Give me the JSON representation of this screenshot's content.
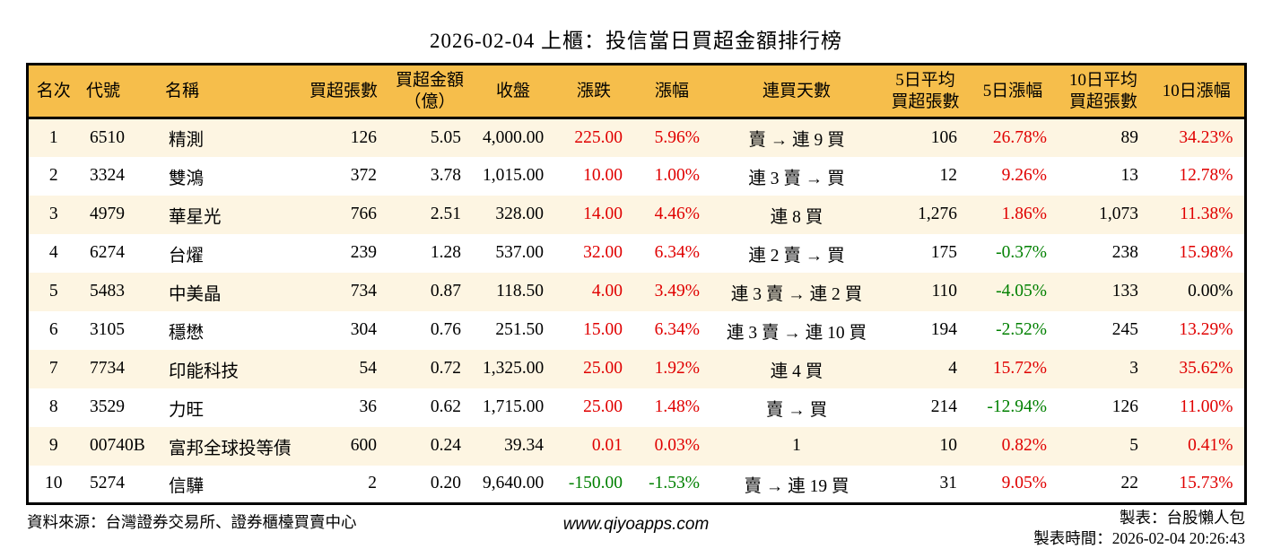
{
  "title": "2026-02-04 上櫃：投信當日買超金額排行榜",
  "colors": {
    "header_bg": "#F6BE4B",
    "row_alt_bg": "#FDF5E2",
    "row_bg": "#FFFFFF",
    "positive_red": "#E00000",
    "negative_green": "#008000",
    "text": "#000000",
    "border": "#000000"
  },
  "chart_data": {
    "type": "table",
    "title": "2026-02-04 上櫃：投信當日買超金額排行榜",
    "columns": [
      {
        "key": "rank",
        "label": "名次",
        "align": "center",
        "header_align": "center"
      },
      {
        "key": "code",
        "label": "代號",
        "align": "left",
        "header_align": "left"
      },
      {
        "key": "name",
        "label": "名稱",
        "align": "left",
        "header_align": "left"
      },
      {
        "key": "net_buy_volume",
        "label": "買超張數",
        "align": "right",
        "header_align": "center"
      },
      {
        "key": "net_buy_amount",
        "label": "買超金額\n（億）",
        "align": "right",
        "header_align": "center"
      },
      {
        "key": "close",
        "label": "收盤",
        "align": "right",
        "header_align": "center"
      },
      {
        "key": "change",
        "label": "漲跌",
        "align": "right",
        "header_align": "center"
      },
      {
        "key": "change_pct",
        "label": "漲幅",
        "align": "right",
        "header_align": "center"
      },
      {
        "key": "consecutive_days",
        "label": "連買天數",
        "align": "center",
        "header_align": "center"
      },
      {
        "key": "avg5_volume",
        "label": "5日平均\n買超張數",
        "align": "right",
        "header_align": "center"
      },
      {
        "key": "chg5_pct",
        "label": "5日漲幅",
        "align": "right",
        "header_align": "center"
      },
      {
        "key": "avg10_volume",
        "label": "10日平均\n買超張數",
        "align": "right",
        "header_align": "center"
      },
      {
        "key": "chg10_pct",
        "label": "10日漲幅",
        "align": "right",
        "header_align": "center"
      }
    ],
    "rows": [
      {
        "rank": "1",
        "code": "6510",
        "name": "精測",
        "net_buy_volume": "126",
        "net_buy_amount": "5.05",
        "close": "4,000.00",
        "change": {
          "t": "225.00",
          "c": "red"
        },
        "change_pct": {
          "t": "5.96%",
          "c": "red"
        },
        "consecutive_days": "賣 → 連 9 買",
        "avg5_volume": "106",
        "chg5_pct": {
          "t": "26.78%",
          "c": "red"
        },
        "avg10_volume": "89",
        "chg10_pct": {
          "t": "34.23%",
          "c": "red"
        }
      },
      {
        "rank": "2",
        "code": "3324",
        "name": "雙鴻",
        "net_buy_volume": "372",
        "net_buy_amount": "3.78",
        "close": "1,015.00",
        "change": {
          "t": "10.00",
          "c": "red"
        },
        "change_pct": {
          "t": "1.00%",
          "c": "red"
        },
        "consecutive_days": "連 3 賣 → 買",
        "avg5_volume": "12",
        "chg5_pct": {
          "t": "9.26%",
          "c": "red"
        },
        "avg10_volume": "13",
        "chg10_pct": {
          "t": "12.78%",
          "c": "red"
        }
      },
      {
        "rank": "3",
        "code": "4979",
        "name": "華星光",
        "net_buy_volume": "766",
        "net_buy_amount": "2.51",
        "close": "328.00",
        "change": {
          "t": "14.00",
          "c": "red"
        },
        "change_pct": {
          "t": "4.46%",
          "c": "red"
        },
        "consecutive_days": "連 8 買",
        "avg5_volume": "1,276",
        "chg5_pct": {
          "t": "1.86%",
          "c": "red"
        },
        "avg10_volume": "1,073",
        "chg10_pct": {
          "t": "11.38%",
          "c": "red"
        }
      },
      {
        "rank": "4",
        "code": "6274",
        "name": "台燿",
        "net_buy_volume": "239",
        "net_buy_amount": "1.28",
        "close": "537.00",
        "change": {
          "t": "32.00",
          "c": "red"
        },
        "change_pct": {
          "t": "6.34%",
          "c": "red"
        },
        "consecutive_days": "連 2 賣 → 買",
        "avg5_volume": "175",
        "chg5_pct": {
          "t": "-0.37%",
          "c": "green"
        },
        "avg10_volume": "238",
        "chg10_pct": {
          "t": "15.98%",
          "c": "red"
        }
      },
      {
        "rank": "5",
        "code": "5483",
        "name": "中美晶",
        "net_buy_volume": "734",
        "net_buy_amount": "0.87",
        "close": "118.50",
        "change": {
          "t": "4.00",
          "c": "red"
        },
        "change_pct": {
          "t": "3.49%",
          "c": "red"
        },
        "consecutive_days": "連 3 賣 → 連 2 買",
        "avg5_volume": "110",
        "chg5_pct": {
          "t": "-4.05%",
          "c": "green"
        },
        "avg10_volume": "133",
        "chg10_pct": {
          "t": "0.00%",
          "c": "black"
        }
      },
      {
        "rank": "6",
        "code": "3105",
        "name": "穩懋",
        "net_buy_volume": "304",
        "net_buy_amount": "0.76",
        "close": "251.50",
        "change": {
          "t": "15.00",
          "c": "red"
        },
        "change_pct": {
          "t": "6.34%",
          "c": "red"
        },
        "consecutive_days": "連 3 賣 → 連 10 買",
        "avg5_volume": "194",
        "chg5_pct": {
          "t": "-2.52%",
          "c": "green"
        },
        "avg10_volume": "245",
        "chg10_pct": {
          "t": "13.29%",
          "c": "red"
        }
      },
      {
        "rank": "7",
        "code": "7734",
        "name": "印能科技",
        "net_buy_volume": "54",
        "net_buy_amount": "0.72",
        "close": "1,325.00",
        "change": {
          "t": "25.00",
          "c": "red"
        },
        "change_pct": {
          "t": "1.92%",
          "c": "red"
        },
        "consecutive_days": "連 4 買",
        "avg5_volume": "4",
        "chg5_pct": {
          "t": "15.72%",
          "c": "red"
        },
        "avg10_volume": "3",
        "chg10_pct": {
          "t": "35.62%",
          "c": "red"
        }
      },
      {
        "rank": "8",
        "code": "3529",
        "name": "力旺",
        "net_buy_volume": "36",
        "net_buy_amount": "0.62",
        "close": "1,715.00",
        "change": {
          "t": "25.00",
          "c": "red"
        },
        "change_pct": {
          "t": "1.48%",
          "c": "red"
        },
        "consecutive_days": "賣 → 買",
        "avg5_volume": "214",
        "chg5_pct": {
          "t": "-12.94%",
          "c": "green"
        },
        "avg10_volume": "126",
        "chg10_pct": {
          "t": "11.00%",
          "c": "red"
        }
      },
      {
        "rank": "9",
        "code": "00740B",
        "name": "富邦全球投等債",
        "net_buy_volume": "600",
        "net_buy_amount": "0.24",
        "close": "39.34",
        "change": {
          "t": "0.01",
          "c": "red"
        },
        "change_pct": {
          "t": "0.03%",
          "c": "red"
        },
        "consecutive_days": "1",
        "avg5_volume": "10",
        "chg5_pct": {
          "t": "0.82%",
          "c": "red"
        },
        "avg10_volume": "5",
        "chg10_pct": {
          "t": "0.41%",
          "c": "red"
        }
      },
      {
        "rank": "10",
        "code": "5274",
        "name": "信驊",
        "net_buy_volume": "2",
        "net_buy_amount": "0.20",
        "close": "9,640.00",
        "change": {
          "t": "-150.00",
          "c": "green"
        },
        "change_pct": {
          "t": "-1.53%",
          "c": "green"
        },
        "consecutive_days": "賣 → 連 19 買",
        "avg5_volume": "31",
        "chg5_pct": {
          "t": "9.05%",
          "c": "red"
        },
        "avg10_volume": "22",
        "chg10_pct": {
          "t": "15.73%",
          "c": "red"
        }
      }
    ]
  },
  "footer": {
    "source": "資料來源：台灣證券交易所、證券櫃檯買賣中心",
    "website": "www.qiyoapps.com",
    "maker": "製表：台股懶人包",
    "made_time": "製表時間：2026-02-04 20:26:43"
  }
}
